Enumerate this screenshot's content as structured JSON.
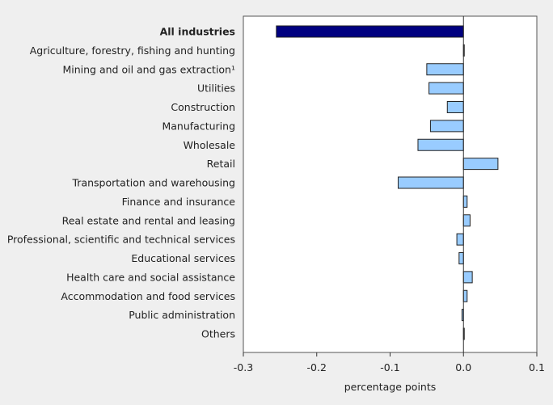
{
  "chart_data": {
    "type": "bar",
    "orientation": "horizontal",
    "title": "",
    "xlabel": "percentage points",
    "ylabel": "",
    "xlim": [
      -0.3,
      0.1
    ],
    "xticks": [
      -0.3,
      -0.2,
      -0.1,
      0.0,
      0.1
    ],
    "xtick_labels": [
      "-0.3",
      "-0.2",
      "-0.1",
      "0.0",
      "0.1"
    ],
    "grid": false,
    "categories": [
      "All industries",
      "Agriculture, forestry, fishing and hunting",
      "Mining and oil and gas extraction¹",
      "Utilities",
      "Construction",
      "Manufacturing",
      "Wholesale",
      "Retail",
      "Transportation and warehousing",
      "Finance and insurance",
      "Real estate and rental and leasing",
      "Professional, scientific and technical services",
      "Educational services",
      "Health care and social assistance",
      "Accommodation and food services",
      "Public administration",
      "Others"
    ],
    "values": [
      -0.255,
      0.001,
      -0.05,
      -0.047,
      -0.022,
      -0.045,
      -0.062,
      0.047,
      -0.089,
      0.005,
      0.009,
      -0.009,
      -0.006,
      0.012,
      0.005,
      -0.002,
      0.001
    ],
    "highlight_index": 0,
    "colors": {
      "highlight": "#000080",
      "bar": "#99ccff",
      "edge": "#222222",
      "background": "#efefef",
      "plot": "#ffffff"
    }
  }
}
